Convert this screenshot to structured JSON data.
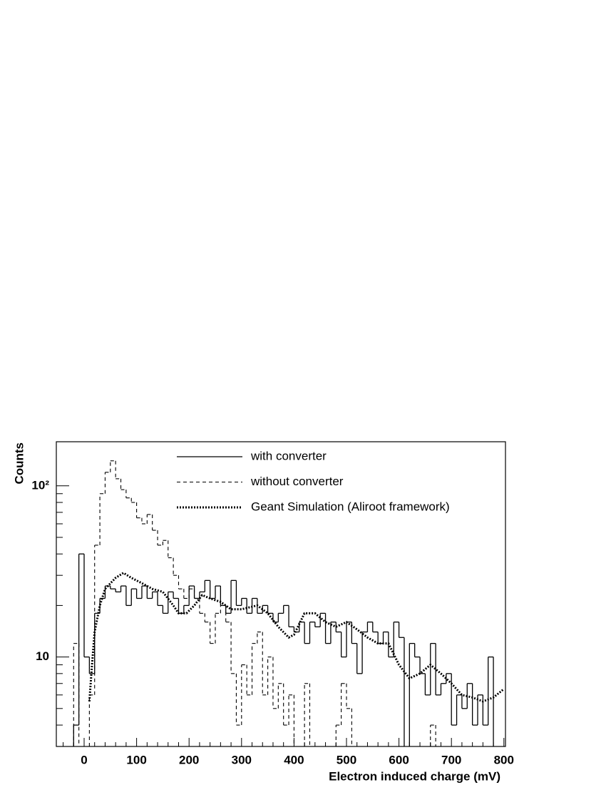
{
  "chart_data": {
    "type": "histogram",
    "x_label": "Electron induced charge (mV)",
    "y_label": "Counts",
    "xlim": [
      -53,
      803
    ],
    "ylim": [
      3,
      181
    ],
    "log_y": true,
    "xticks": [
      0,
      100,
      200,
      300,
      400,
      500,
      600,
      700,
      800
    ],
    "xminor_ticks": [
      -40,
      -20,
      20,
      40,
      60,
      80,
      120,
      140,
      160,
      180,
      220,
      240,
      260,
      280,
      320,
      340,
      360,
      380,
      420,
      440,
      460,
      480,
      520,
      540,
      560,
      580,
      620,
      640,
      660,
      680,
      720,
      740,
      760,
      780
    ],
    "yticks": [
      10,
      {
        "value": 100,
        "label": "10²"
      }
    ],
    "yminor_ticks": [
      4,
      5,
      6,
      7,
      8,
      9,
      20,
      30,
      40,
      50,
      60,
      70,
      80,
      90
    ],
    "legend": "top",
    "bins": [
      -30,
      -20,
      -10,
      0,
      10,
      20,
      30,
      40,
      50,
      60,
      70,
      80,
      90,
      100,
      110,
      120,
      130,
      140,
      150,
      160,
      170,
      180,
      190,
      200,
      210,
      220,
      230,
      240,
      250,
      260,
      270,
      280,
      290,
      300,
      310,
      320,
      330,
      340,
      350,
      360,
      370,
      380,
      390,
      400,
      410,
      420,
      430,
      440,
      450,
      460,
      470,
      480,
      490,
      500,
      510,
      520,
      530,
      540,
      550,
      560,
      570,
      580,
      590,
      600,
      610,
      620,
      630,
      640,
      650,
      660,
      670,
      680,
      690,
      700,
      710,
      720,
      730,
      740,
      750,
      760,
      770,
      780,
      790
    ],
    "series": [
      {
        "name": "with converter",
        "color": "#000000",
        "style": "solid",
        "values": [
          null,
          4,
          40,
          10,
          8,
          18,
          22,
          26,
          25,
          24,
          26,
          20,
          25,
          22,
          26,
          22,
          24,
          20,
          18,
          24,
          22,
          18,
          20,
          26,
          22,
          24,
          28,
          22,
          26,
          20,
          18,
          28,
          20,
          22,
          18,
          22,
          18,
          20,
          18,
          16,
          18,
          20,
          15,
          14,
          16,
          12,
          16,
          15,
          18,
          12,
          16,
          14,
          10,
          16,
          12,
          8,
          14,
          16,
          14,
          12,
          14,
          10,
          16,
          13,
          null,
          12,
          10,
          8,
          6,
          12,
          6,
          7,
          8,
          4,
          6,
          5,
          7,
          4,
          6,
          4,
          10,
          null
        ]
      },
      {
        "name": "without converter",
        "color": "#000000",
        "style": "dashed",
        "values": [
          null,
          12,
          null,
          null,
          6,
          45,
          90,
          120,
          140,
          110,
          95,
          85,
          80,
          65,
          60,
          68,
          55,
          45,
          48,
          38,
          30,
          25,
          22,
          25,
          22,
          18,
          16,
          12,
          18,
          20,
          16,
          8,
          4,
          9,
          6,
          12,
          14,
          6,
          10,
          5,
          7,
          4,
          6,
          null,
          null,
          7,
          null,
          null,
          null,
          null,
          null,
          4,
          7,
          5,
          null,
          null,
          null,
          null,
          null,
          null,
          null,
          null,
          null,
          null,
          null,
          null,
          null,
          null,
          null,
          4,
          null,
          null,
          null,
          null,
          null,
          null,
          null,
          null,
          null,
          null,
          null,
          null
        ]
      },
      {
        "name": "Geant Simulation (Aliroot framework)",
        "color": "#000000",
        "style": "dotted",
        "kind": "line",
        "x": [
          10,
          15,
          20,
          30,
          40,
          60,
          75,
          90,
          110,
          130,
          150,
          170,
          180,
          195,
          210,
          225,
          240,
          260,
          280,
          300,
          330,
          350,
          370,
          390,
          400,
          420,
          440,
          460,
          480,
          500,
          520,
          540,
          560,
          580,
          600,
          620,
          640,
          660,
          680,
          700,
          720,
          740,
          760,
          780,
          800
        ],
        "values": [
          5.5,
          9,
          14,
          20,
          25,
          29,
          31,
          29,
          27,
          25,
          24,
          20,
          18,
          18,
          20,
          23,
          22,
          21,
          19,
          19,
          20,
          18,
          15,
          13,
          13.5,
          18,
          18,
          16,
          15,
          16,
          14.5,
          13,
          12,
          12,
          9,
          7.5,
          8,
          9,
          8,
          7,
          6,
          5.8,
          5.5,
          5.8,
          6.5
        ]
      }
    ]
  }
}
